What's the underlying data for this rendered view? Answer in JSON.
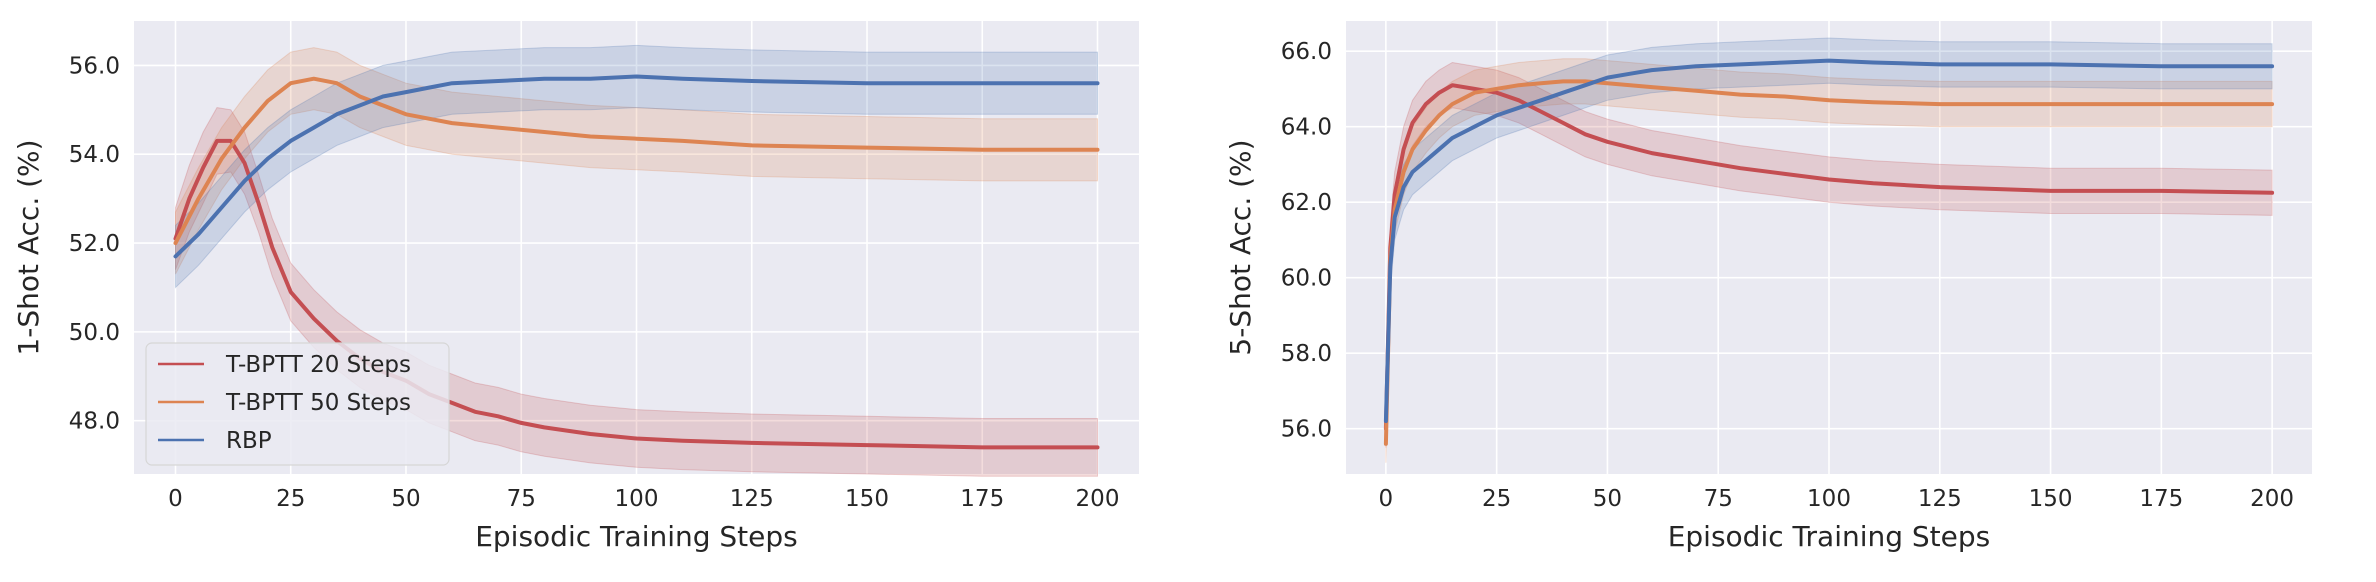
{
  "chart_data": [
    {
      "type": "line",
      "xlabel": "Episodic Training Steps",
      "ylabel": "1-Shot Acc. (%)",
      "xlim": [
        -9,
        209
      ],
      "ylim": [
        46.8,
        57.0
      ],
      "xticks": [
        0,
        25,
        50,
        75,
        100,
        125,
        150,
        175,
        200
      ],
      "xtick_labels": [
        "0",
        "25",
        "50",
        "75",
        "100",
        "125",
        "150",
        "175",
        "200"
      ],
      "yticks": [
        48,
        50,
        52,
        54,
        56
      ],
      "ytick_labels": [
        "48.0",
        "50.0",
        "52.0",
        "54.0",
        "56.0"
      ],
      "grid": true,
      "legend": {
        "position": "lower-left",
        "entries": [
          "T-BPTT 20 Steps",
          "T-BPTT 50 Steps",
          "RBP"
        ]
      },
      "series": [
        {
          "name": "T-BPTT 20 Steps",
          "color": "#c44e52",
          "x": [
            0,
            3,
            6,
            9,
            12,
            15,
            18,
            21,
            25,
            30,
            35,
            40,
            45,
            50,
            55,
            60,
            65,
            70,
            75,
            80,
            90,
            100,
            110,
            125,
            150,
            175,
            200
          ],
          "y": [
            52.1,
            53.0,
            53.7,
            54.3,
            54.3,
            53.8,
            52.9,
            51.9,
            50.9,
            50.3,
            49.8,
            49.4,
            49.1,
            48.9,
            48.6,
            48.4,
            48.2,
            48.1,
            47.95,
            47.85,
            47.7,
            47.6,
            47.55,
            47.5,
            47.45,
            47.4,
            47.4
          ],
          "band": [
            0.7,
            0.75,
            0.8,
            0.75,
            0.7,
            0.7,
            0.65,
            0.65,
            0.65,
            0.65,
            0.65,
            0.65,
            0.65,
            0.65,
            0.65,
            0.65,
            0.65,
            0.65,
            0.65,
            0.65,
            0.65,
            0.65,
            0.65,
            0.65,
            0.65,
            0.65,
            0.65
          ]
        },
        {
          "name": "T-BPTT 50 Steps",
          "color": "#dd8452",
          "x": [
            0,
            5,
            10,
            15,
            20,
            25,
            30,
            35,
            40,
            45,
            50,
            55,
            60,
            70,
            80,
            90,
            100,
            110,
            125,
            150,
            175,
            200
          ],
          "y": [
            52.0,
            53.0,
            53.9,
            54.6,
            55.2,
            55.6,
            55.7,
            55.6,
            55.3,
            55.1,
            54.9,
            54.8,
            54.7,
            54.6,
            54.5,
            54.4,
            54.35,
            54.3,
            54.2,
            54.15,
            54.1,
            54.1
          ],
          "band": [
            0.7,
            0.7,
            0.7,
            0.7,
            0.7,
            0.7,
            0.7,
            0.7,
            0.7,
            0.7,
            0.7,
            0.7,
            0.7,
            0.7,
            0.7,
            0.7,
            0.7,
            0.7,
            0.7,
            0.7,
            0.7,
            0.7
          ]
        },
        {
          "name": "RBP",
          "color": "#4c72b0",
          "x": [
            0,
            5,
            10,
            15,
            20,
            25,
            30,
            35,
            40,
            45,
            50,
            55,
            60,
            70,
            80,
            90,
            100,
            110,
            125,
            150,
            175,
            200
          ],
          "y": [
            51.7,
            52.2,
            52.8,
            53.4,
            53.9,
            54.3,
            54.6,
            54.9,
            55.1,
            55.3,
            55.4,
            55.5,
            55.6,
            55.65,
            55.7,
            55.7,
            55.75,
            55.7,
            55.65,
            55.6,
            55.6,
            55.6
          ],
          "band": [
            0.7,
            0.7,
            0.7,
            0.7,
            0.7,
            0.7,
            0.7,
            0.7,
            0.7,
            0.7,
            0.7,
            0.7,
            0.7,
            0.7,
            0.7,
            0.7,
            0.7,
            0.7,
            0.7,
            0.7,
            0.7,
            0.7
          ]
        }
      ]
    },
    {
      "type": "line",
      "xlabel": "Episodic Training Steps",
      "ylabel": "5-Shot Acc. (%)",
      "xlim": [
        -9,
        209
      ],
      "ylim": [
        54.8,
        66.8
      ],
      "xticks": [
        0,
        25,
        50,
        75,
        100,
        125,
        150,
        175,
        200
      ],
      "xtick_labels": [
        "0",
        "25",
        "50",
        "75",
        "100",
        "125",
        "150",
        "175",
        "200"
      ],
      "yticks": [
        56,
        58,
        60,
        62,
        64,
        66
      ],
      "ytick_labels": [
        "56.0",
        "58.0",
        "60.0",
        "62.0",
        "64.0",
        "66.0"
      ],
      "grid": true,
      "series": [
        {
          "name": "T-BPTT 20 Steps",
          "color": "#c44e52",
          "x": [
            0,
            1,
            2,
            4,
            6,
            9,
            12,
            15,
            20,
            25,
            30,
            35,
            40,
            45,
            50,
            60,
            70,
            80,
            90,
            100,
            110,
            125,
            150,
            175,
            200
          ],
          "y": [
            56.0,
            60.8,
            62.2,
            63.4,
            64.1,
            64.6,
            64.9,
            65.1,
            65.0,
            64.9,
            64.7,
            64.4,
            64.1,
            63.8,
            63.6,
            63.3,
            63.1,
            62.9,
            62.75,
            62.6,
            62.5,
            62.4,
            62.3,
            62.3,
            62.25
          ],
          "band": [
            0.5,
            0.6,
            0.6,
            0.6,
            0.6,
            0.6,
            0.6,
            0.6,
            0.6,
            0.6,
            0.6,
            0.6,
            0.6,
            0.6,
            0.6,
            0.6,
            0.6,
            0.6,
            0.6,
            0.6,
            0.6,
            0.6,
            0.6,
            0.6,
            0.6
          ]
        },
        {
          "name": "T-BPTT 50 Steps",
          "color": "#dd8452",
          "x": [
            0,
            1,
            2,
            4,
            6,
            9,
            12,
            15,
            20,
            25,
            30,
            35,
            40,
            45,
            50,
            60,
            70,
            80,
            90,
            100,
            110,
            125,
            150,
            175,
            200
          ],
          "y": [
            55.6,
            60.5,
            61.8,
            62.8,
            63.4,
            63.9,
            64.3,
            64.6,
            64.9,
            65.0,
            65.1,
            65.15,
            65.2,
            65.2,
            65.15,
            65.05,
            64.95,
            64.85,
            64.8,
            64.7,
            64.65,
            64.6,
            64.6,
            64.6,
            64.6
          ],
          "band": [
            0.5,
            0.6,
            0.6,
            0.6,
            0.6,
            0.6,
            0.6,
            0.6,
            0.6,
            0.6,
            0.6,
            0.6,
            0.6,
            0.6,
            0.6,
            0.6,
            0.6,
            0.6,
            0.6,
            0.6,
            0.6,
            0.6,
            0.6,
            0.6,
            0.6
          ]
        },
        {
          "name": "RBP",
          "color": "#4c72b0",
          "x": [
            0,
            1,
            2,
            4,
            6,
            9,
            12,
            15,
            20,
            25,
            30,
            35,
            40,
            45,
            50,
            55,
            60,
            70,
            80,
            90,
            100,
            110,
            125,
            150,
            175,
            200
          ],
          "y": [
            56.2,
            60.3,
            61.6,
            62.4,
            62.8,
            63.1,
            63.4,
            63.7,
            64.0,
            64.3,
            64.5,
            64.7,
            64.9,
            65.1,
            65.3,
            65.4,
            65.5,
            65.6,
            65.65,
            65.7,
            65.75,
            65.7,
            65.65,
            65.65,
            65.6,
            65.6
          ],
          "band": [
            0.5,
            0.6,
            0.6,
            0.6,
            0.6,
            0.6,
            0.6,
            0.6,
            0.6,
            0.6,
            0.6,
            0.6,
            0.6,
            0.6,
            0.6,
            0.6,
            0.6,
            0.6,
            0.6,
            0.6,
            0.6,
            0.6,
            0.6,
            0.6,
            0.6,
            0.6
          ]
        }
      ]
    }
  ]
}
